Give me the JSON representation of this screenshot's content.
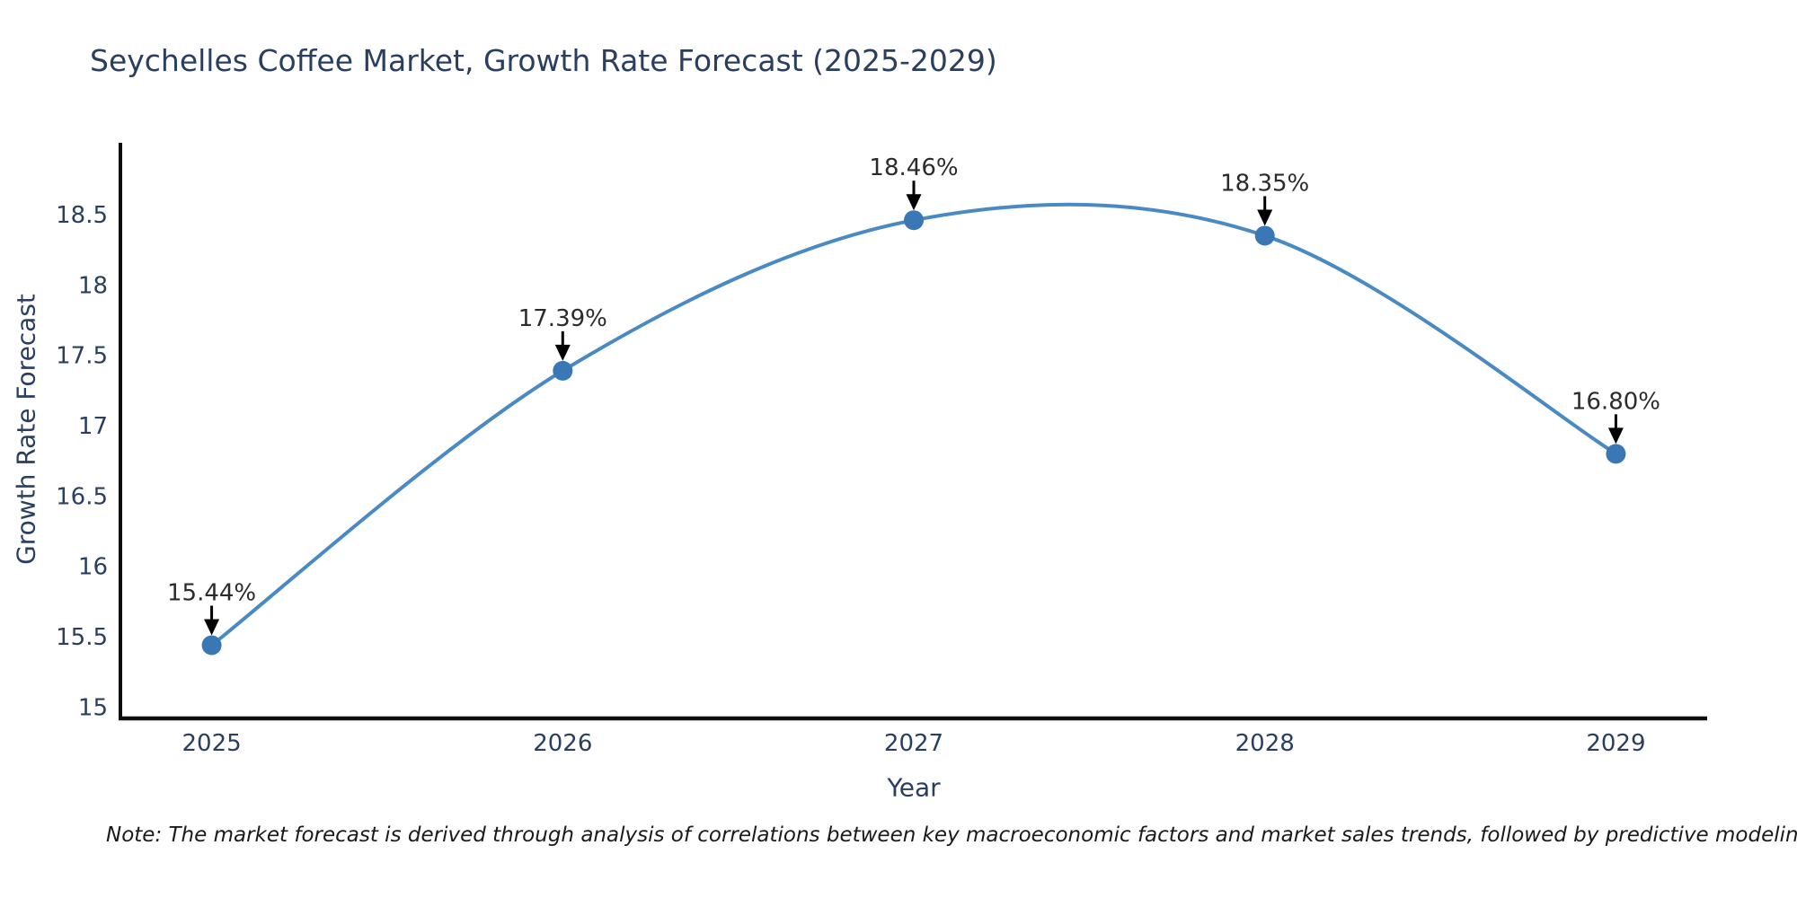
{
  "chart_data": {
    "type": "line",
    "title": "Seychelles Coffee Market, Growth Rate Forecast (2025-2029)",
    "xlabel": "Year",
    "ylabel": "Growth Rate Forecast",
    "x": [
      2025,
      2026,
      2027,
      2028,
      2029
    ],
    "values": [
      15.44,
      17.39,
      18.46,
      18.35,
      16.8
    ],
    "point_labels": [
      "15.44%",
      "17.39%",
      "18.46%",
      "18.35%",
      "16.80%"
    ],
    "x_tick_labels": [
      "2025",
      "2026",
      "2027",
      "2028",
      "2029"
    ],
    "y_ticks": [
      15,
      15.5,
      16,
      16.5,
      17,
      17.5,
      18,
      18.5
    ],
    "y_tick_labels": [
      "15",
      "15.5",
      "16",
      "16.5",
      "17",
      "17.5",
      "18",
      "18.5"
    ],
    "xlim": [
      2024.74,
      2029.26
    ],
    "ylim": [
      14.92,
      19.01
    ],
    "line_shape": "spline",
    "grid": false,
    "legend": "none"
  },
  "colors": {
    "line": "#4a8ac4",
    "marker": "#3a78b5",
    "axis": "#0d0d0d",
    "tick_text": "#2a3f5f",
    "annotation_text": "#2b2b2b",
    "arrow": "#000000",
    "title_text": "#2a3f5f",
    "background": "#ffffff"
  },
  "note": {
    "text": "Note: The market forecast is derived through analysis of correlations between key macroeconomic factors and market sales trends, followed by predictive modeling to project future sales"
  }
}
